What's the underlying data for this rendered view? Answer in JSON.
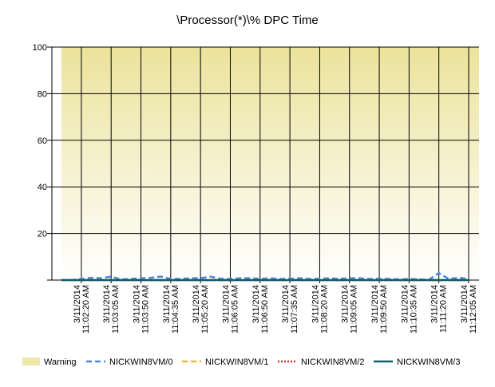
{
  "chart_data": {
    "type": "line",
    "title": "\\Processor(*)\\% DPC Time",
    "categories": [
      null,
      null,
      "3/11/2014 11:02:20 AM",
      null,
      null,
      "3/11/2014 11:03:05 AM",
      null,
      null,
      "3/11/2014 11:03:50 AM",
      null,
      null,
      "3/11/2014 11:04:35 AM",
      null,
      null,
      "3/11/2014 11:05:20 AM",
      null,
      null,
      "3/11/2014 11:06:05 AM",
      null,
      null,
      "3/11/2014 11:06:50 AM",
      null,
      null,
      "3/11/2014 11:07:35 AM",
      null,
      null,
      "3/11/2014 11:08:20 AM",
      null,
      null,
      "3/11/2014 11:09:05 AM",
      null,
      null,
      "3/11/2014 11:09:50 AM",
      null,
      null,
      "3/11/2014 11:10:35 AM",
      null,
      null,
      "3/11/2014 11:11:20 AM",
      null,
      null,
      "3/11/2014 11:12:05 AM"
    ],
    "series": [
      {
        "name": "NICKWIN8VM/0",
        "color": "#4a86e0",
        "dash": "dashed",
        "values": [
          0,
          0,
          0.5,
          1,
          0.8,
          1.5,
          0.3,
          0.5,
          0.8,
          1,
          1.5,
          0.5,
          0.5,
          0.8,
          0.8,
          1.5,
          0.6,
          0.5,
          0.8,
          0.8,
          0.5,
          0.8,
          0.5,
          0.6,
          0.8,
          0.5,
          0.6,
          0.8,
          0.5,
          0.8,
          0.8,
          0.5,
          0.6,
          0.5,
          0.3,
          0.5,
          0.3,
          0.2,
          3,
          0.5,
          1,
          0.5
        ]
      },
      {
        "name": "NICKWIN8VM/1",
        "color": "#e8c030",
        "dash": "dashed",
        "values": [
          0,
          0,
          0,
          0,
          0,
          0,
          0,
          0,
          0,
          0,
          0,
          0,
          0,
          0,
          0,
          0,
          0,
          0,
          0,
          0,
          0,
          0,
          0,
          0,
          0,
          0,
          0,
          0,
          0,
          0,
          0,
          0,
          0,
          0,
          0,
          0,
          0,
          0,
          0,
          0,
          0,
          0
        ]
      },
      {
        "name": "NICKWIN8VM/2",
        "color": "#c0392b",
        "dash": "dotted",
        "values": [
          0,
          0,
          0,
          0,
          0,
          0,
          0,
          0,
          0,
          0,
          0,
          0,
          0,
          0,
          0,
          0,
          0,
          0,
          0,
          0,
          0,
          0,
          0,
          0,
          0,
          0,
          0,
          0,
          0,
          0,
          0,
          0,
          0,
          0,
          0,
          0,
          0,
          0,
          0,
          0,
          0,
          0
        ]
      },
      {
        "name": "NICKWIN8VM/3",
        "color": "#0b5e6e",
        "dash": "solid",
        "values": [
          0,
          0,
          0,
          0,
          0,
          0,
          0,
          0,
          0,
          0,
          0,
          0,
          0,
          0,
          0,
          0,
          0,
          0,
          0,
          0,
          0,
          0,
          0,
          0,
          0,
          0,
          0,
          0,
          0,
          0,
          0,
          0,
          0,
          0,
          0,
          0,
          0,
          0,
          0,
          0,
          0,
          0
        ]
      }
    ],
    "warning": {
      "label": "Warning",
      "color": "#eee8a8"
    },
    "ylim": [
      0,
      100
    ],
    "yticks": [
      20,
      40,
      60,
      80,
      100
    ],
    "grid": true
  }
}
